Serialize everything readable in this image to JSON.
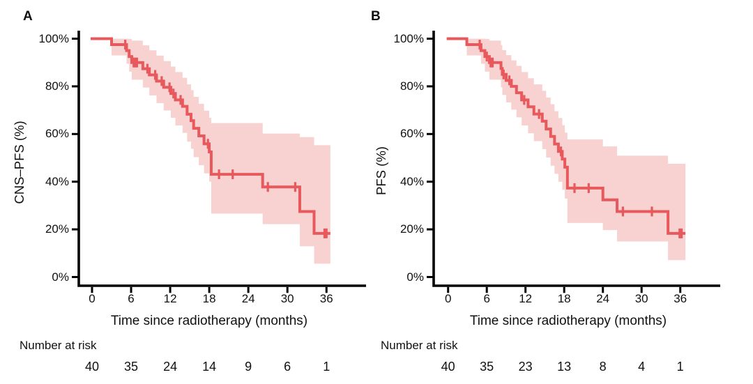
{
  "figure": {
    "panels": [
      {
        "label": "A",
        "y_axis_title": "CNS–PFS (%)",
        "x_axis_title": "Time since radiotherapy (months)",
        "y_tick_labels": [
          "100%",
          "80%",
          "60%",
          "40%",
          "20%",
          "0%"
        ],
        "x_tick_labels": [
          "0",
          "6",
          "12",
          "18",
          "24",
          "30",
          "36"
        ],
        "risk_label": "Number at risk",
        "risk_counts": [
          "40",
          "35",
          "24",
          "14",
          "9",
          "6",
          "1"
        ]
      },
      {
        "label": "B",
        "y_axis_title": "PFS (%)",
        "x_axis_title": "Time since radiotherapy (months)",
        "y_tick_labels": [
          "100%",
          "80%",
          "60%",
          "40%",
          "20%",
          "0%"
        ],
        "x_tick_labels": [
          "0",
          "6",
          "12",
          "18",
          "24",
          "30",
          "36"
        ],
        "risk_label": "Number at risk",
        "risk_counts": [
          "40",
          "35",
          "23",
          "13",
          "8",
          "4",
          "1"
        ]
      }
    ]
  },
  "colors": {
    "curve": "#E7595C",
    "ci_band": "#F8D1D1",
    "axis": "#000000",
    "text": "#111111"
  },
  "chart_data": [
    {
      "type": "line",
      "subtype": "kaplan_meier_step",
      "panel": "A",
      "series_name": "CNS-PFS",
      "xlabel": "Time since radiotherapy (months)",
      "ylabel": "CNS–PFS (%)",
      "xlim": [
        0,
        42
      ],
      "ylim": [
        0,
        100
      ],
      "grid": false,
      "legend": false,
      "x_ticks": [
        0,
        6,
        12,
        18,
        24,
        30,
        36
      ],
      "y_ticks": [
        100,
        80,
        60,
        40,
        20,
        0
      ],
      "line_color": "#E7595C",
      "ci_color": "#F8D1D1",
      "steps": [
        {
          "t": 0,
          "s": 100,
          "lo": 100,
          "hi": 100
        },
        {
          "t": 3.0,
          "s": 97.5,
          "lo": 93.0,
          "hi": 100
        },
        {
          "t": 5.3,
          "s": 95.0,
          "lo": 89.5,
          "hi": 100
        },
        {
          "t": 5.7,
          "s": 92.5,
          "lo": 86.2,
          "hi": 99.9
        },
        {
          "t": 6.1,
          "s": 90.0,
          "lo": 82.8,
          "hi": 99.2
        },
        {
          "t": 7.8,
          "s": 87.4,
          "lo": 79.5,
          "hi": 97.2
        },
        {
          "t": 8.8,
          "s": 84.8,
          "lo": 76.2,
          "hi": 95.1
        },
        {
          "t": 9.9,
          "s": 82.2,
          "lo": 73.0,
          "hi": 92.9
        },
        {
          "t": 11.0,
          "s": 79.6,
          "lo": 69.9,
          "hi": 90.6
        },
        {
          "t": 12.1,
          "s": 77.0,
          "lo": 66.8,
          "hi": 88.3
        },
        {
          "t": 12.8,
          "s": 74.3,
          "lo": 63.6,
          "hi": 86.0
        },
        {
          "t": 13.9,
          "s": 71.6,
          "lo": 60.5,
          "hi": 83.6
        },
        {
          "t": 14.6,
          "s": 68.3,
          "lo": 56.8,
          "hi": 80.8
        },
        {
          "t": 15.2,
          "s": 65.6,
          "lo": 53.8,
          "hi": 78.4
        },
        {
          "t": 15.6,
          "s": 62.4,
          "lo": 50.3,
          "hi": 75.6
        },
        {
          "t": 16.4,
          "s": 59.2,
          "lo": 46.9,
          "hi": 72.7
        },
        {
          "t": 17.2,
          "s": 55.9,
          "lo": 43.5,
          "hi": 69.8
        },
        {
          "t": 18.0,
          "s": 52.5,
          "lo": 40.0,
          "hi": 66.8
        },
        {
          "t": 18.3,
          "s": 43.1,
          "lo": 26.6,
          "hi": 64.6
        },
        {
          "t": 26.2,
          "s": 37.8,
          "lo": 22.2,
          "hi": 60.2
        },
        {
          "t": 31.9,
          "s": 27.5,
          "lo": 12.9,
          "hi": 58.7
        },
        {
          "t": 34.1,
          "s": 18.3,
          "lo": 5.6,
          "hi": 55.3
        }
      ],
      "curve_end": 36.6,
      "censor_times": [
        5.1,
        6.4,
        6.65,
        6.9,
        8.5,
        9.7,
        10.7,
        11.9,
        12.5,
        13.6,
        17.8,
        19.5,
        21.6,
        27.0,
        31.2,
        35.7,
        36.0
      ],
      "number_at_risk": {
        "label": "Number at risk",
        "times": [
          0,
          6,
          12,
          18,
          24,
          30,
          36
        ],
        "counts": [
          40,
          35,
          24,
          14,
          9,
          6,
          1
        ]
      }
    },
    {
      "type": "line",
      "subtype": "kaplan_meier_step",
      "panel": "B",
      "series_name": "PFS",
      "xlabel": "Time since radiotherapy (months)",
      "ylabel": "PFS (%)",
      "xlim": [
        0,
        42
      ],
      "ylim": [
        0,
        100
      ],
      "grid": false,
      "legend": false,
      "x_ticks": [
        0,
        6,
        12,
        18,
        24,
        30,
        36
      ],
      "y_ticks": [
        100,
        80,
        60,
        40,
        20,
        0
      ],
      "line_color": "#E7595C",
      "ci_color": "#F8D1D1",
      "steps": [
        {
          "t": 0,
          "s": 100,
          "lo": 100,
          "hi": 100
        },
        {
          "t": 2.9,
          "s": 97.5,
          "lo": 93.0,
          "hi": 100
        },
        {
          "t": 5.1,
          "s": 95.0,
          "lo": 89.5,
          "hi": 100
        },
        {
          "t": 5.7,
          "s": 92.5,
          "lo": 86.2,
          "hi": 99.9
        },
        {
          "t": 6.4,
          "s": 90.0,
          "lo": 82.8,
          "hi": 99.2
        },
        {
          "t": 8.2,
          "s": 87.5,
          "lo": 79.6,
          "hi": 97.3
        },
        {
          "t": 8.4,
          "s": 85.0,
          "lo": 76.4,
          "hi": 95.2
        },
        {
          "t": 9.0,
          "s": 82.5,
          "lo": 73.3,
          "hi": 93.1
        },
        {
          "t": 9.8,
          "s": 80.0,
          "lo": 70.2,
          "hi": 90.9
        },
        {
          "t": 10.6,
          "s": 77.3,
          "lo": 67.0,
          "hi": 88.6
        },
        {
          "t": 11.4,
          "s": 74.3,
          "lo": 63.6,
          "hi": 86.0
        },
        {
          "t": 12.4,
          "s": 71.4,
          "lo": 60.3,
          "hi": 83.4
        },
        {
          "t": 13.3,
          "s": 68.4,
          "lo": 57.0,
          "hi": 80.8
        },
        {
          "t": 14.6,
          "s": 65.4,
          "lo": 53.7,
          "hi": 78.1
        },
        {
          "t": 15.2,
          "s": 62.1,
          "lo": 50.1,
          "hi": 75.3
        },
        {
          "t": 15.9,
          "s": 59.0,
          "lo": 46.7,
          "hi": 72.5
        },
        {
          "t": 16.5,
          "s": 55.8,
          "lo": 43.3,
          "hi": 69.6
        },
        {
          "t": 17.1,
          "s": 52.7,
          "lo": 40.0,
          "hi": 66.7
        },
        {
          "t": 17.7,
          "s": 49.5,
          "lo": 36.6,
          "hi": 63.7
        },
        {
          "t": 18.1,
          "s": 46.1,
          "lo": 32.9,
          "hi": 60.6
        },
        {
          "t": 18.5,
          "s": 37.3,
          "lo": 22.7,
          "hi": 57.7
        },
        {
          "t": 24.0,
          "s": 32.4,
          "lo": 19.7,
          "hi": 54.8
        },
        {
          "t": 26.2,
          "s": 27.5,
          "lo": 14.9,
          "hi": 50.9
        },
        {
          "t": 34.1,
          "s": 18.3,
          "lo": 7.1,
          "hi": 47.5
        }
      ],
      "curve_end": 36.8,
      "censor_times": [
        4.9,
        6.0,
        6.6,
        6.9,
        8.6,
        9.5,
        11.8,
        14.1,
        17.5,
        19.6,
        21.8,
        27.1,
        31.6,
        35.9,
        36.2
      ],
      "number_at_risk": {
        "label": "Number at risk",
        "times": [
          0,
          6,
          12,
          18,
          24,
          30,
          36
        ],
        "counts": [
          40,
          35,
          23,
          13,
          8,
          4,
          1
        ]
      }
    }
  ]
}
